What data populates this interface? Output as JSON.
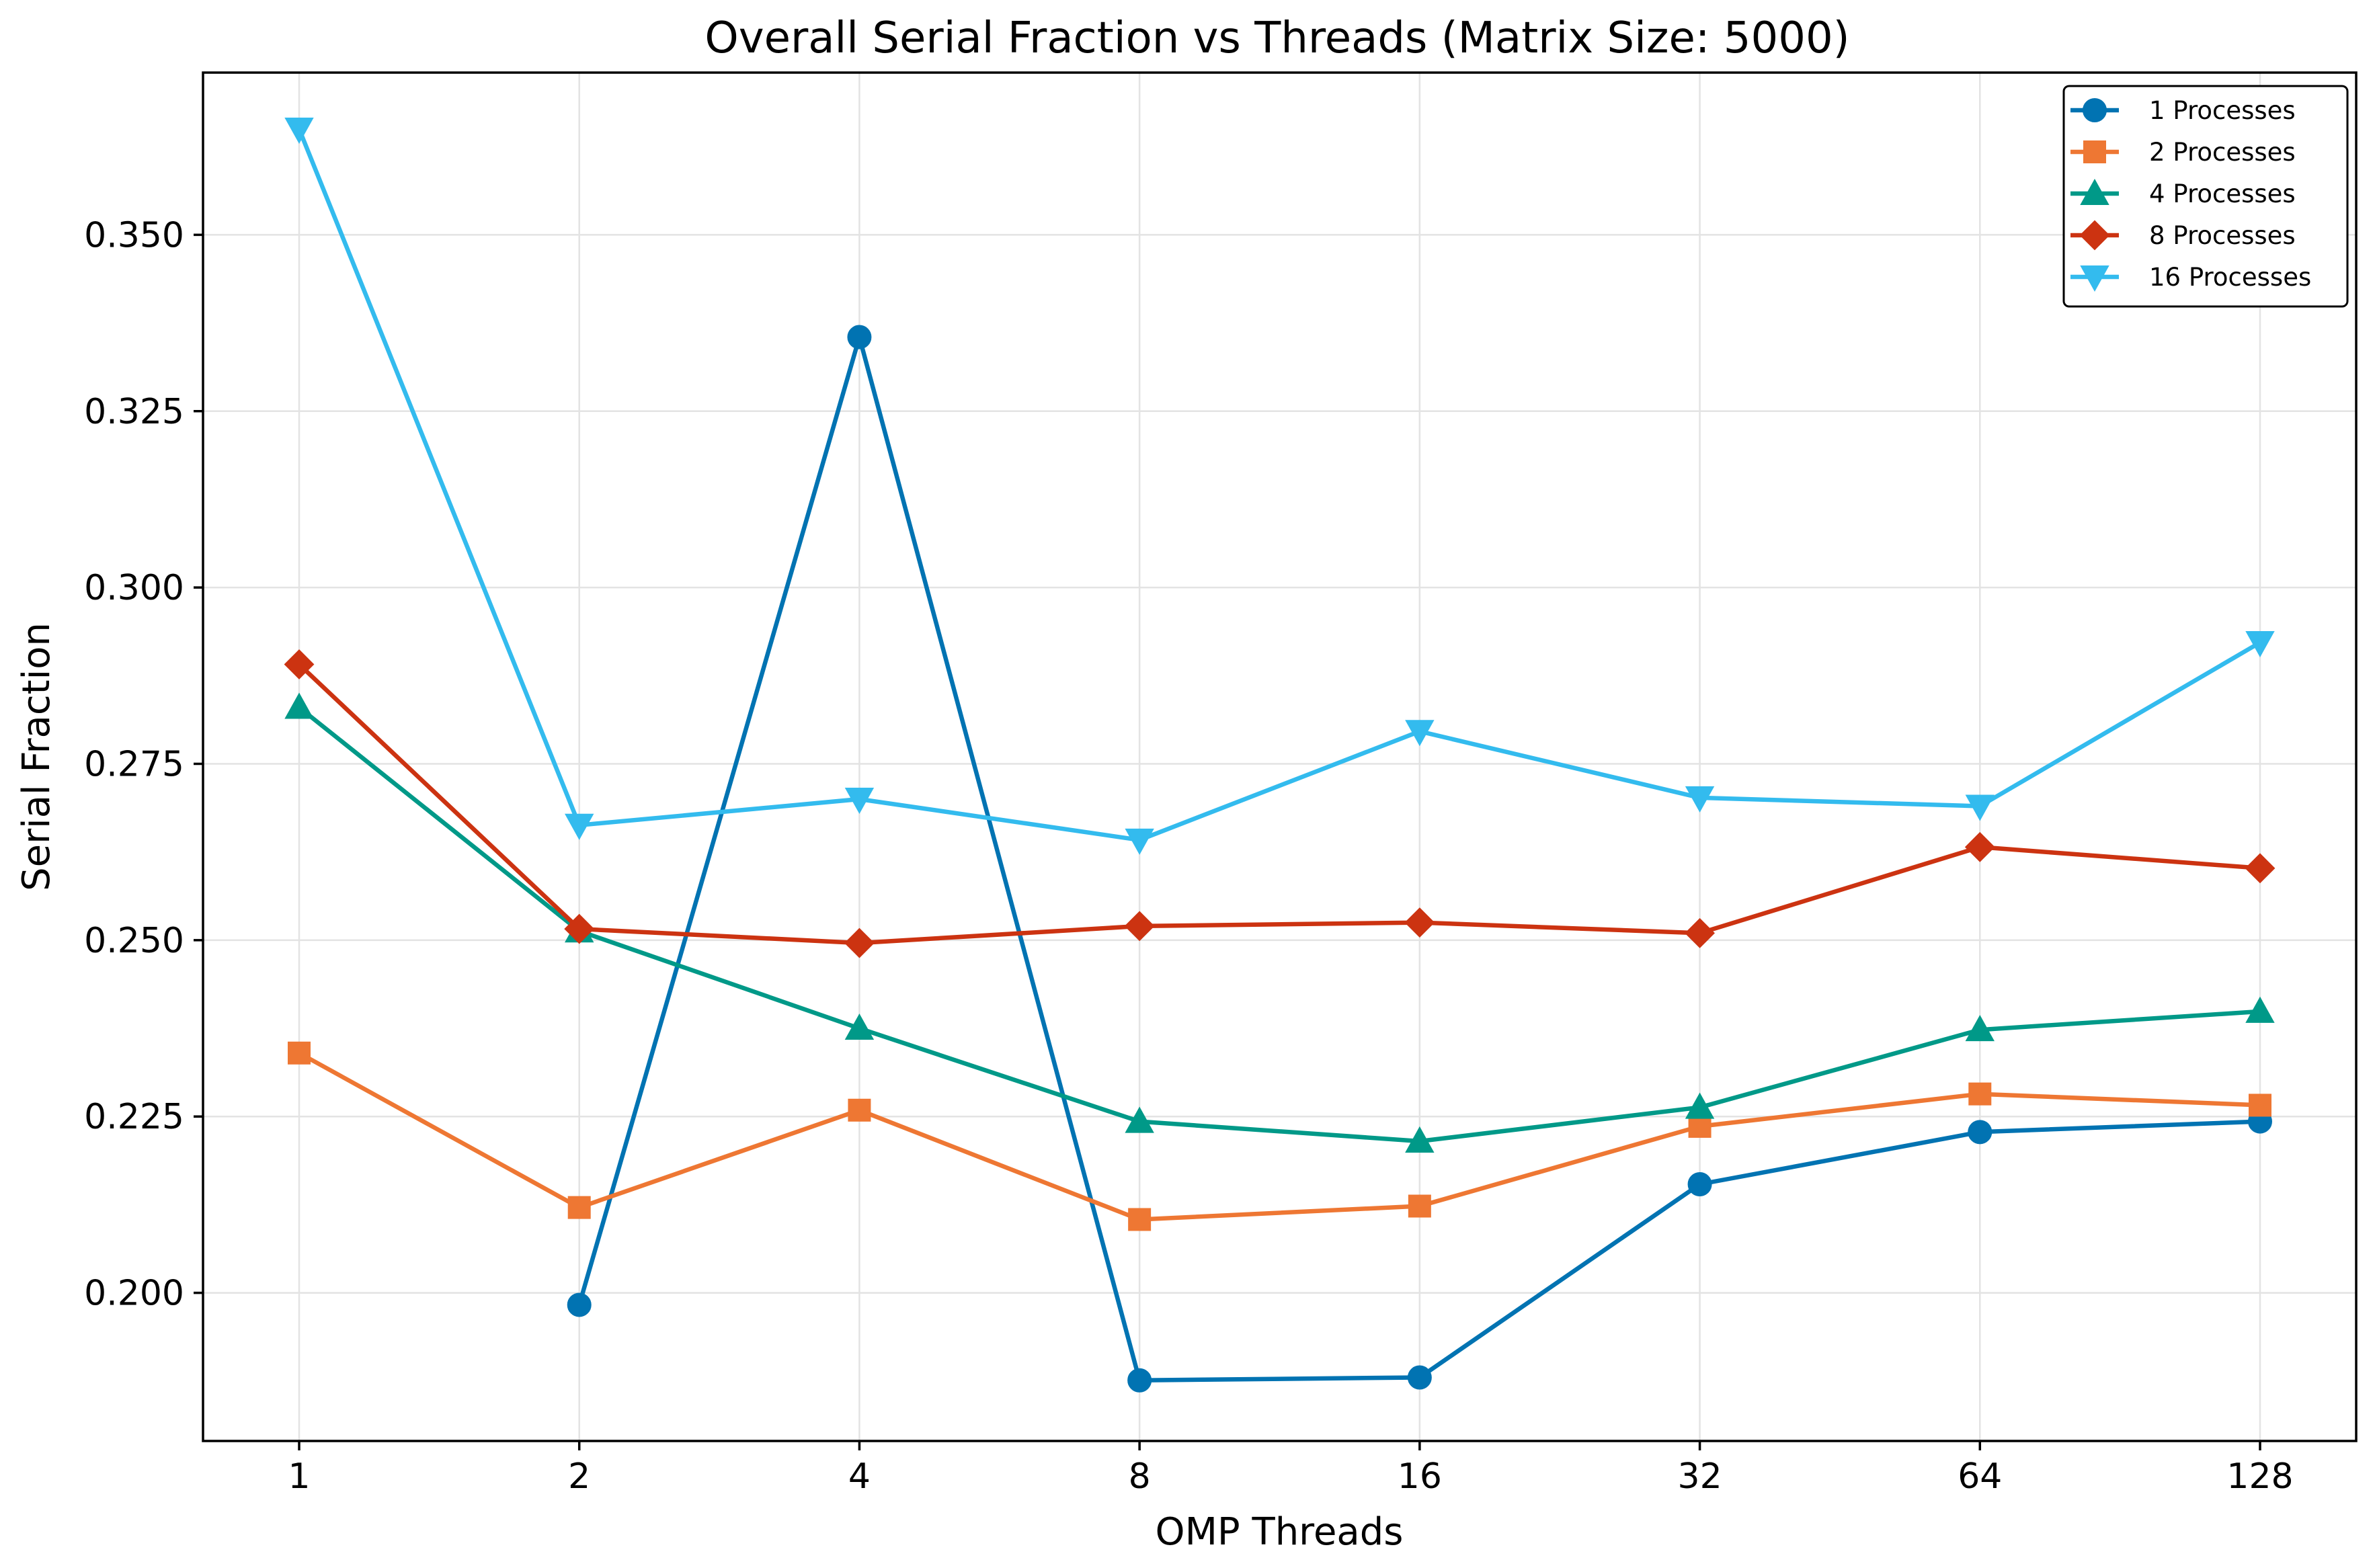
{
  "chart_data": {
    "type": "line",
    "title": "Overall Serial Fraction vs Threads (Matrix Size: 5000)",
    "xlabel": "OMP Threads",
    "ylabel": "Serial Fraction",
    "x_scale": "log2",
    "x": [
      1,
      2,
      4,
      8,
      16,
      32,
      64,
      128
    ],
    "x_tick_labels": [
      "1",
      "2",
      "4",
      "8",
      "16",
      "32",
      "64",
      "128"
    ],
    "ylim": [
      0.179,
      0.373
    ],
    "y_ticks": [
      0.2,
      0.225,
      0.25,
      0.275,
      0.3,
      0.325,
      0.35
    ],
    "y_tick_labels": [
      "0.200",
      "0.225",
      "0.250",
      "0.275",
      "0.300",
      "0.325",
      "0.350"
    ],
    "grid": true,
    "legend_position": "top-right",
    "series": [
      {
        "name": "1 Processes",
        "color": "#0173b2",
        "marker": "circle",
        "values": [
          null,
          0.1983,
          0.3355,
          0.1876,
          0.188,
          0.2154,
          0.2228,
          0.2243
        ]
      },
      {
        "name": "2 Processes",
        "color": "#ee7733",
        "marker": "square",
        "values": [
          0.234,
          0.2121,
          0.2259,
          0.2104,
          0.2123,
          0.2236,
          0.2282,
          0.2266
        ]
      },
      {
        "name": "4 Processes",
        "color": "#009988",
        "marker": "triangle-up",
        "values": [
          0.283,
          0.2513,
          0.2375,
          0.2243,
          0.2215,
          0.2263,
          0.2373,
          0.2399
        ]
      },
      {
        "name": "8 Processes",
        "color": "#cc3311",
        "marker": "diamond",
        "values": [
          0.2891,
          0.2516,
          0.2496,
          0.252,
          0.2525,
          0.251,
          0.2632,
          0.2602
        ]
      },
      {
        "name": "16 Processes",
        "color": "#33bbee",
        "marker": "triangle-down",
        "values": [
          0.365,
          0.2663,
          0.27,
          0.2642,
          0.2796,
          0.2702,
          0.269,
          0.2922
        ]
      }
    ]
  }
}
